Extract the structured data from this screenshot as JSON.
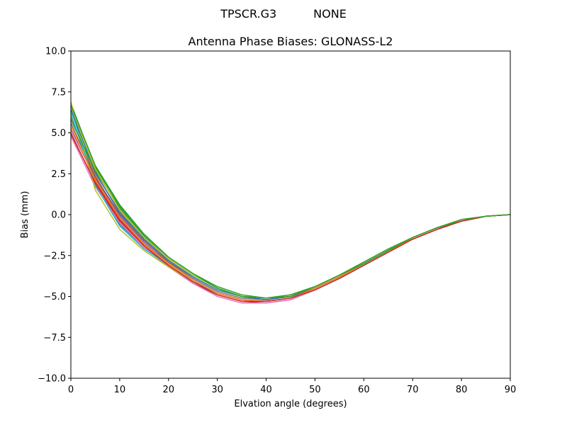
{
  "figure": {
    "suptitle_left": "TPSCR.G3",
    "suptitle_right": "NONE"
  },
  "chart_data": {
    "type": "line",
    "title": "Antenna Phase Biases: GLONASS-L2",
    "xlabel": "Elvation angle (degrees)",
    "ylabel": "Bias (mm)",
    "xlim": [
      0,
      90
    ],
    "ylim": [
      -10,
      10
    ],
    "xticks": [
      0,
      10,
      20,
      30,
      40,
      50,
      60,
      70,
      80,
      90
    ],
    "yticks": [
      -10.0,
      -7.5,
      -5.0,
      -2.5,
      0.0,
      2.5,
      5.0,
      7.5,
      10.0
    ],
    "xtick_labels": [
      "0",
      "10",
      "20",
      "30",
      "40",
      "50",
      "60",
      "70",
      "80",
      "90"
    ],
    "ytick_labels": [
      "−10.0",
      "−7.5",
      "−5.0",
      "−2.5",
      "0.0",
      "2.5",
      "5.0",
      "7.5",
      "10.0"
    ],
    "grid": false,
    "legend": "none",
    "x": [
      0,
      5,
      10,
      15,
      20,
      25,
      30,
      35,
      40,
      45,
      50,
      55,
      60,
      65,
      70,
      75,
      80,
      85,
      90
    ],
    "series": [
      {
        "color": "#1f77b4",
        "values": [
          6.5,
          2.0,
          -0.6,
          -2.0,
          -3.1,
          -4.1,
          -4.8,
          -5.2,
          -5.3,
          -5.1,
          -4.6,
          -3.9,
          -3.1,
          -2.3,
          -1.5,
          -0.9,
          -0.4,
          -0.1,
          0.0
        ]
      },
      {
        "color": "#ff7f0e",
        "values": [
          6.0,
          2.4,
          -0.2,
          -1.8,
          -2.9,
          -3.9,
          -4.7,
          -5.1,
          -5.2,
          -5.0,
          -4.5,
          -3.8,
          -3.0,
          -2.2,
          -1.4,
          -0.8,
          -0.4,
          -0.1,
          0.0
        ]
      },
      {
        "color": "#2ca02c",
        "values": [
          6.8,
          2.9,
          0.5,
          -1.2,
          -2.6,
          -3.6,
          -4.4,
          -4.9,
          -5.1,
          -4.9,
          -4.4,
          -3.7,
          -2.9,
          -2.1,
          -1.4,
          -0.8,
          -0.3,
          -0.1,
          0.0
        ]
      },
      {
        "color": "#d62728",
        "values": [
          4.9,
          2.0,
          -0.3,
          -1.9,
          -3.1,
          -4.2,
          -4.9,
          -5.3,
          -5.4,
          -5.2,
          -4.6,
          -3.9,
          -3.1,
          -2.3,
          -1.5,
          -0.9,
          -0.4,
          -0.1,
          0.0
        ]
      },
      {
        "color": "#9467bd",
        "values": [
          5.2,
          2.2,
          -0.1,
          -1.7,
          -3.0,
          -4.0,
          -4.8,
          -5.2,
          -5.3,
          -5.1,
          -4.5,
          -3.8,
          -3.0,
          -2.2,
          -1.5,
          -0.9,
          -0.4,
          -0.1,
          0.0
        ]
      },
      {
        "color": "#8c564b",
        "values": [
          5.6,
          2.3,
          0.0,
          -1.6,
          -2.9,
          -3.9,
          -4.7,
          -5.1,
          -5.2,
          -5.0,
          -4.5,
          -3.8,
          -3.0,
          -2.2,
          -1.5,
          -0.9,
          -0.4,
          -0.1,
          0.0
        ]
      },
      {
        "color": "#e377c2",
        "values": [
          4.8,
          1.7,
          -0.5,
          -2.0,
          -3.2,
          -4.2,
          -5.0,
          -5.4,
          -5.4,
          -5.2,
          -4.6,
          -3.9,
          -3.1,
          -2.3,
          -1.5,
          -0.9,
          -0.4,
          -0.1,
          0.0
        ]
      },
      {
        "color": "#7f7f7f",
        "values": [
          5.9,
          2.5,
          0.2,
          -1.5,
          -2.8,
          -3.9,
          -4.7,
          -5.1,
          -5.2,
          -5.0,
          -4.5,
          -3.8,
          -3.0,
          -2.2,
          -1.5,
          -0.9,
          -0.4,
          -0.1,
          0.0
        ]
      },
      {
        "color": "#bcbd22",
        "values": [
          6.9,
          1.5,
          -0.9,
          -2.2,
          -3.2,
          -4.1,
          -4.8,
          -5.2,
          -5.3,
          -5.1,
          -4.6,
          -3.9,
          -3.1,
          -2.3,
          -1.5,
          -0.9,
          -0.4,
          -0.1,
          0.0
        ]
      },
      {
        "color": "#17becf",
        "values": [
          6.2,
          1.8,
          -0.7,
          -2.1,
          -3.1,
          -4.1,
          -4.8,
          -5.2,
          -5.3,
          -5.1,
          -4.6,
          -3.9,
          -3.1,
          -2.3,
          -1.5,
          -0.9,
          -0.4,
          -0.1,
          0.0
        ]
      },
      {
        "color": "#1f77b4",
        "values": [
          6.4,
          2.6,
          0.1,
          -1.5,
          -2.8,
          -3.8,
          -4.6,
          -5.0,
          -5.2,
          -5.0,
          -4.5,
          -3.8,
          -3.0,
          -2.2,
          -1.5,
          -0.9,
          -0.4,
          -0.1,
          0.0
        ]
      },
      {
        "color": "#ff7f0e",
        "values": [
          5.4,
          2.1,
          -0.2,
          -1.8,
          -3.0,
          -4.0,
          -4.8,
          -5.2,
          -5.3,
          -5.1,
          -4.5,
          -3.8,
          -3.0,
          -2.2,
          -1.5,
          -0.9,
          -0.4,
          -0.1,
          0.0
        ]
      },
      {
        "color": "#2ca02c",
        "values": [
          5.8,
          2.7,
          0.4,
          -1.3,
          -2.7,
          -3.7,
          -4.5,
          -5.0,
          -5.1,
          -5.0,
          -4.4,
          -3.7,
          -3.0,
          -2.2,
          -1.4,
          -0.8,
          -0.4,
          -0.1,
          0.0
        ]
      },
      {
        "color": "#d62728",
        "values": [
          5.0,
          1.9,
          -0.4,
          -1.9,
          -3.1,
          -4.1,
          -4.9,
          -5.3,
          -5.3,
          -5.1,
          -4.6,
          -3.9,
          -3.1,
          -2.3,
          -1.5,
          -0.9,
          -0.4,
          -0.1,
          0.0
        ]
      },
      {
        "color": "#bcbd22",
        "values": [
          6.6,
          2.8,
          0.3,
          -1.4,
          -2.7,
          -3.7,
          -4.5,
          -5.0,
          -5.1,
          -4.9,
          -4.4,
          -3.7,
          -2.9,
          -2.1,
          -1.4,
          -0.8,
          -0.3,
          -0.1,
          0.0
        ]
      },
      {
        "color": "#2ca02c",
        "values": [
          6.7,
          3.0,
          0.6,
          -1.2,
          -2.6,
          -3.6,
          -4.5,
          -5.0,
          -5.1,
          -4.9,
          -4.4,
          -3.7,
          -2.9,
          -2.1,
          -1.4,
          -0.8,
          -0.3,
          -0.1,
          0.0
        ]
      }
    ]
  }
}
